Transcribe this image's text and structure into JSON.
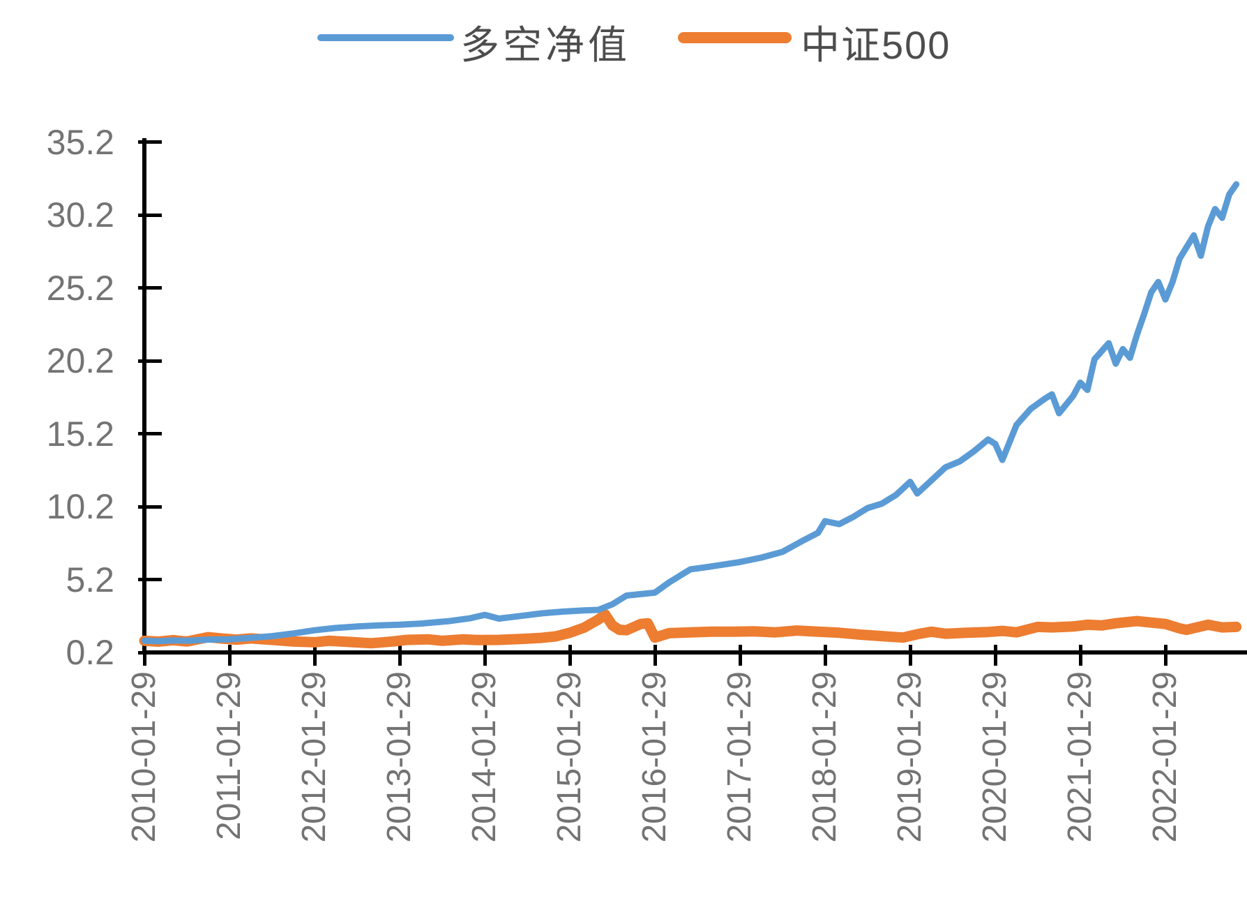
{
  "chart_data": {
    "type": "line",
    "title": "",
    "grid": false,
    "legend_position": "top-center",
    "x_axis": {
      "tick_labels": [
        "2010-01-29",
        "2011-01-29",
        "2012-01-29",
        "2013-01-29",
        "2014-01-29",
        "2015-01-29",
        "2016-01-29",
        "2017-01-29",
        "2018-01-29",
        "2019-01-29",
        "2020-01-29",
        "2021-01-29",
        "2022-01-29"
      ],
      "label_rotation_deg": -90
    },
    "y_axis": {
      "tick_labels": [
        "35.2",
        "30.2",
        "25.2",
        "20.2",
        "15.2",
        "10.2",
        "5.2",
        "0.2"
      ],
      "tick_values": [
        35.2,
        30.2,
        25.2,
        20.2,
        15.2,
        10.2,
        5.2,
        0.2
      ],
      "min": 0.2,
      "max": 35.2,
      "step": 5
    },
    "colors": {
      "axis": "#000000",
      "tick_label": "#737373",
      "legend_text": "#4d4d4d",
      "background": "#ffffff"
    },
    "series": [
      {
        "name": "多空净值",
        "color": "#5B9BD5",
        "points": [
          [
            "2010-01",
            1.0
          ],
          [
            "2010-03",
            0.97
          ],
          [
            "2010-05",
            1.03
          ],
          [
            "2010-07",
            1.0
          ],
          [
            "2010-10",
            1.08
          ],
          [
            "2011-01",
            1.1
          ],
          [
            "2011-04",
            1.2
          ],
          [
            "2011-07",
            1.32
          ],
          [
            "2011-10",
            1.5
          ],
          [
            "2012-01",
            1.72
          ],
          [
            "2012-04",
            1.88
          ],
          [
            "2012-07",
            1.98
          ],
          [
            "2012-10",
            2.05
          ],
          [
            "2013-01",
            2.1
          ],
          [
            "2013-04",
            2.18
          ],
          [
            "2013-08",
            2.35
          ],
          [
            "2013-11",
            2.55
          ],
          [
            "2014-01",
            2.78
          ],
          [
            "2014-03",
            2.52
          ],
          [
            "2014-06",
            2.7
          ],
          [
            "2014-09",
            2.88
          ],
          [
            "2014-12",
            3.0
          ],
          [
            "2015-03",
            3.08
          ],
          [
            "2015-05",
            3.12
          ],
          [
            "2015-07",
            3.5
          ],
          [
            "2015-09",
            4.1
          ],
          [
            "2015-11",
            4.2
          ],
          [
            "2016-01",
            4.3
          ],
          [
            "2016-03",
            5.0
          ],
          [
            "2016-06",
            5.9
          ],
          [
            "2016-09",
            6.1
          ],
          [
            "2016-11",
            6.25
          ],
          [
            "2017-01",
            6.4
          ],
          [
            "2017-04",
            6.7
          ],
          [
            "2017-07",
            7.1
          ],
          [
            "2017-10",
            7.9
          ],
          [
            "2017-12",
            8.4
          ],
          [
            "2018-01",
            9.2
          ],
          [
            "2018-03",
            9.0
          ],
          [
            "2018-05",
            9.5
          ],
          [
            "2018-07",
            10.1
          ],
          [
            "2018-09",
            10.4
          ],
          [
            "2018-11",
            11.0
          ],
          [
            "2019-01",
            11.9
          ],
          [
            "2019-02",
            11.1
          ],
          [
            "2019-04",
            12.0
          ],
          [
            "2019-06",
            12.9
          ],
          [
            "2019-08",
            13.3
          ],
          [
            "2019-10",
            14.0
          ],
          [
            "2019-12",
            14.8
          ],
          [
            "2020-01",
            14.5
          ],
          [
            "2020-02",
            13.4
          ],
          [
            "2020-04",
            15.8
          ],
          [
            "2020-06",
            16.9
          ],
          [
            "2020-08",
            17.6
          ],
          [
            "2020-09",
            17.9
          ],
          [
            "2020-10",
            16.6
          ],
          [
            "2020-12",
            17.8
          ],
          [
            "2021-01",
            18.7
          ],
          [
            "2021-02",
            18.2
          ],
          [
            "2021-03",
            20.3
          ],
          [
            "2021-05",
            21.4
          ],
          [
            "2021-06",
            20.0
          ],
          [
            "2021-07",
            21.0
          ],
          [
            "2021-08",
            20.4
          ],
          [
            "2021-09",
            22.0
          ],
          [
            "2021-10",
            23.4
          ],
          [
            "2021-11",
            24.9
          ],
          [
            "2021-12",
            25.6
          ],
          [
            "2022-01",
            24.4
          ],
          [
            "2022-02",
            25.6
          ],
          [
            "2022-03",
            27.2
          ],
          [
            "2022-04",
            28.0
          ],
          [
            "2022-05",
            28.8
          ],
          [
            "2022-06",
            27.4
          ],
          [
            "2022-07",
            29.4
          ],
          [
            "2022-08",
            30.6
          ],
          [
            "2022-09",
            30.0
          ],
          [
            "2022-10",
            31.6
          ],
          [
            "2022-11",
            32.3
          ]
        ]
      },
      {
        "name": "中证500",
        "color": "#ED7D31",
        "points": [
          [
            "2010-01",
            1.0
          ],
          [
            "2010-03",
            0.94
          ],
          [
            "2010-05",
            1.04
          ],
          [
            "2010-07",
            0.95
          ],
          [
            "2010-10",
            1.25
          ],
          [
            "2010-12",
            1.15
          ],
          [
            "2011-02",
            1.08
          ],
          [
            "2011-04",
            1.16
          ],
          [
            "2011-07",
            1.06
          ],
          [
            "2011-10",
            0.95
          ],
          [
            "2012-01",
            0.9
          ],
          [
            "2012-03",
            1.0
          ],
          [
            "2012-06",
            0.92
          ],
          [
            "2012-09",
            0.83
          ],
          [
            "2012-12",
            0.95
          ],
          [
            "2013-02",
            1.06
          ],
          [
            "2013-05",
            1.1
          ],
          [
            "2013-07",
            1.0
          ],
          [
            "2013-10",
            1.1
          ],
          [
            "2013-12",
            1.05
          ],
          [
            "2014-03",
            1.06
          ],
          [
            "2014-06",
            1.12
          ],
          [
            "2014-09",
            1.2
          ],
          [
            "2014-11",
            1.3
          ],
          [
            "2015-01",
            1.55
          ],
          [
            "2015-03",
            1.9
          ],
          [
            "2015-05",
            2.45
          ],
          [
            "2015-06",
            2.8
          ],
          [
            "2015-07",
            2.05
          ],
          [
            "2015-08",
            1.75
          ],
          [
            "2015-09",
            1.72
          ],
          [
            "2015-11",
            2.15
          ],
          [
            "2015-12",
            2.2
          ],
          [
            "2016-01",
            1.22
          ],
          [
            "2016-03",
            1.52
          ],
          [
            "2016-06",
            1.58
          ],
          [
            "2016-09",
            1.62
          ],
          [
            "2016-12",
            1.62
          ],
          [
            "2017-03",
            1.65
          ],
          [
            "2017-06",
            1.58
          ],
          [
            "2017-09",
            1.7
          ],
          [
            "2017-12",
            1.62
          ],
          [
            "2018-03",
            1.55
          ],
          [
            "2018-06",
            1.42
          ],
          [
            "2018-09",
            1.32
          ],
          [
            "2018-12",
            1.22
          ],
          [
            "2019-02",
            1.45
          ],
          [
            "2019-04",
            1.62
          ],
          [
            "2019-06",
            1.48
          ],
          [
            "2019-09",
            1.55
          ],
          [
            "2019-12",
            1.6
          ],
          [
            "2020-02",
            1.68
          ],
          [
            "2020-04",
            1.58
          ],
          [
            "2020-07",
            1.95
          ],
          [
            "2020-09",
            1.92
          ],
          [
            "2020-12",
            1.98
          ],
          [
            "2021-02",
            2.1
          ],
          [
            "2021-04",
            2.05
          ],
          [
            "2021-06",
            2.2
          ],
          [
            "2021-09",
            2.35
          ],
          [
            "2021-11",
            2.25
          ],
          [
            "2022-01",
            2.15
          ],
          [
            "2022-03",
            1.85
          ],
          [
            "2022-04",
            1.75
          ],
          [
            "2022-07",
            2.1
          ],
          [
            "2022-09",
            1.92
          ],
          [
            "2022-11",
            1.95
          ]
        ]
      }
    ]
  }
}
